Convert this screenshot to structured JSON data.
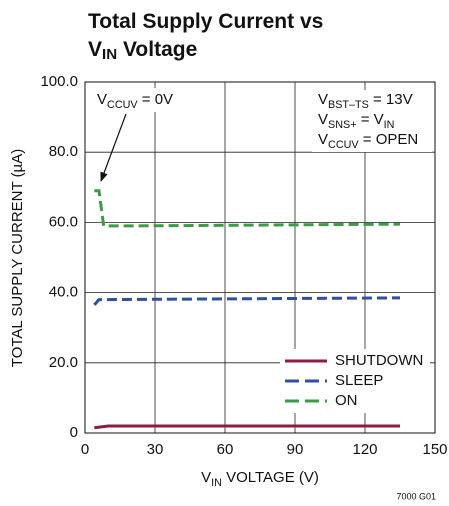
{
  "chart_data": {
    "type": "line",
    "title": [
      [
        "Total Supply Current vs"
      ],
      [
        "V",
        "IN",
        " Voltage"
      ]
    ],
    "x_label": [
      "V",
      "IN",
      " VOLTAGE (V)"
    ],
    "y_label": "TOTAL SUPPLY CURRENT (µA)",
    "annotations": [
      [
        "V",
        "CCUV",
        " = 0V"
      ],
      [
        "V",
        "BST–TS",
        " = 13V"
      ],
      [
        "V",
        "SNS+",
        " = V",
        "IN"
      ],
      [
        "V",
        "CCUV",
        " = OPEN"
      ]
    ],
    "figure_id": "7000 G01",
    "xlim": [
      0,
      150
    ],
    "xticks": [
      0,
      30,
      60,
      90,
      120,
      150
    ],
    "ylim": [
      0,
      100
    ],
    "yticks": [
      0,
      {
        "value": 20,
        "label": "20.0"
      },
      {
        "value": 40,
        "label": "40.0"
      },
      {
        "value": 60,
        "label": "60.0"
      },
      {
        "value": 80,
        "label": "80.0"
      },
      {
        "value": 100,
        "label": "100.0"
      }
    ],
    "grid": true,
    "legend": "lower right",
    "series": [
      {
        "name": "SHUTDOWN",
        "color": "#8c1d40",
        "dashed": false,
        "x": [
          4,
          10,
          135
        ],
        "values": [
          1.5,
          2,
          2
        ]
      },
      {
        "name": "SLEEP",
        "color": "#2f4f9f",
        "dashed": true,
        "x": [
          4,
          6,
          135
        ],
        "values": [
          36.5,
          38,
          38.5
        ]
      },
      {
        "name": "ON",
        "color": "#3d9a45",
        "dashed": true,
        "x": [
          4,
          6,
          8,
          20,
          135
        ],
        "values": [
          69,
          69,
          59,
          59,
          59.5
        ]
      }
    ]
  }
}
